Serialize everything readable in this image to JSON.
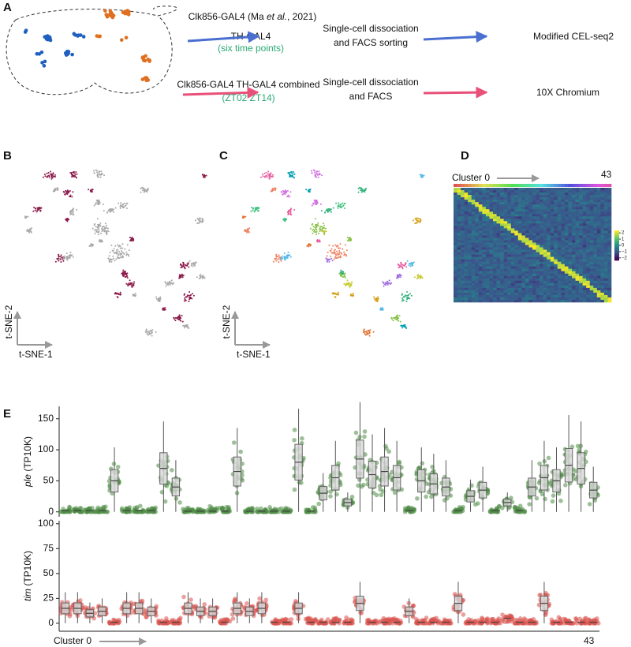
{
  "panel_a": {
    "label": "A",
    "row1": {
      "source": [
        "Clk856-GAL4 (Ma ",
        "et al.",
        ", 2021)"
      ],
      "driver": "TH-GAL4",
      "note": "(six time points)",
      "step": [
        "Single-cell dissociation",
        "and FACS sorting"
      ],
      "method": "Modified CEL-seq2"
    },
    "row2": {
      "driver": "Clk856-GAL4 TH-GAL4 combined",
      "note": "(ZT02 ZT14)",
      "step": [
        "Single-cell dissociation",
        "and FACS"
      ],
      "method": "10X Chromium"
    }
  },
  "panel_b": {
    "label": "B",
    "y_axis": "t-SNE-2",
    "x_axis": "t-SNE-1"
  },
  "panel_c": {
    "label": "C",
    "y_axis": "t-SNE-2",
    "x_axis": "t-SNE-1"
  },
  "panel_d": {
    "label": "D",
    "start": "Cluster 0",
    "end": "43",
    "colorbar_ticks": [
      2,
      1,
      0,
      {
        "value": -1,
        "label": "−1"
      },
      {
        "value": -2,
        "label": "−2"
      }
    ],
    "colorbar_lim": [
      -2.4,
      2.4
    ]
  },
  "panel_e": {
    "label": "E",
    "start": "Cluster 0",
    "end": "43",
    "charts": [
      {
        "type": "box",
        "gene": "ple",
        "unit": "(TP10K)",
        "color": "#4e8c45",
        "ylim": [
          -8,
          170
        ],
        "yticks": [
          0,
          50,
          100,
          150
        ],
        "medians": [
          2,
          2,
          2,
          2,
          50,
          2,
          2,
          2,
          70,
          40,
          1,
          1,
          1,
          1,
          65,
          1,
          1,
          1,
          1,
          80,
          1,
          30,
          55,
          15,
          85,
          60,
          65,
          55,
          2,
          50,
          45,
          40,
          2,
          25,
          35,
          2,
          15,
          2,
          40,
          55,
          50,
          75,
          70,
          35
        ]
      },
      {
        "type": "box",
        "gene": "tim",
        "unit": "(TP10K)",
        "color": "#d9534f",
        "ylim": [
          -8,
          103
        ],
        "yticks": [
          0,
          25,
          50,
          75,
          100
        ],
        "medians": [
          15,
          15,
          10,
          12,
          1,
          15,
          15,
          12,
          1,
          1,
          15,
          12,
          12,
          1,
          15,
          12,
          15,
          1,
          1,
          15,
          1,
          1,
          1,
          1,
          20,
          1,
          1,
          1,
          12,
          1,
          1,
          1,
          20,
          1,
          1,
          1,
          5,
          1,
          1,
          20,
          1,
          1,
          1,
          1
        ]
      }
    ]
  }
}
